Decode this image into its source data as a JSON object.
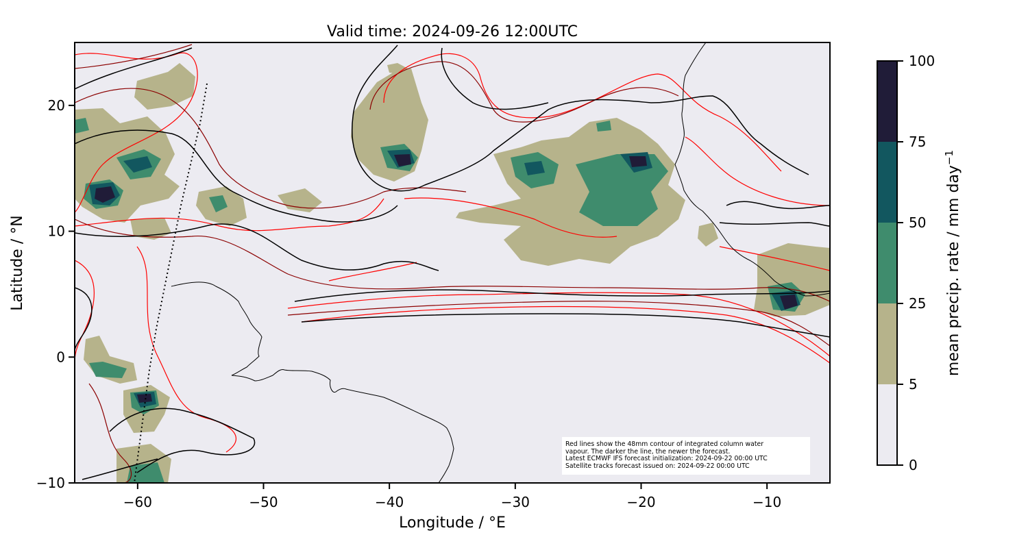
{
  "title": "Valid time: 2024-09-26 12:00UTC",
  "axes": {
    "xlabel": "Longitude / °E",
    "ylabel": "Latitude / °N",
    "xlim": [
      -65,
      -5
    ],
    "ylim": [
      -10,
      25
    ],
    "xticks": [
      -60,
      -50,
      -40,
      -30,
      -20,
      -10
    ],
    "xtick_labels": [
      "−60",
      "−50",
      "−40",
      "−30",
      "−20",
      "−10"
    ],
    "yticks": [
      20,
      10,
      0,
      -10
    ],
    "ytick_labels": [
      "20",
      "10",
      "0",
      "−10"
    ]
  },
  "colorbar": {
    "label": "mean precip. rate / mm day",
    "label_superscript": "−1",
    "levels": [
      0,
      5,
      25,
      50,
      75,
      100
    ],
    "tick_labels": [
      "0",
      "5",
      "25",
      "50",
      "75",
      "100"
    ],
    "colors": [
      "#ecebf1",
      "#b6b38b",
      "#3f8c6d",
      "#12575f",
      "#201c38"
    ]
  },
  "annotation": [
    "Red lines show the 48mm contour of integrated column water",
    "vapour. The darker the line, the newer the forecast.",
    "Latest ECMWF IFS forecast initialization: 2024-09-22 00:00 UTC",
    "Satellite tracks forecast issued on: 2024-09-22 00:00 UTC"
  ],
  "colors": {
    "background": "#ecebf1",
    "precip_5": "#b6b38b",
    "precip_25": "#3f8c6d",
    "precip_50": "#12575f",
    "precip_75": "#201c38",
    "ivw_old": "#ff0000",
    "ivw_mid": "#8b0000",
    "ivw_new": "#000000",
    "coastline": "#000000",
    "satellite_track": "#000000"
  }
}
